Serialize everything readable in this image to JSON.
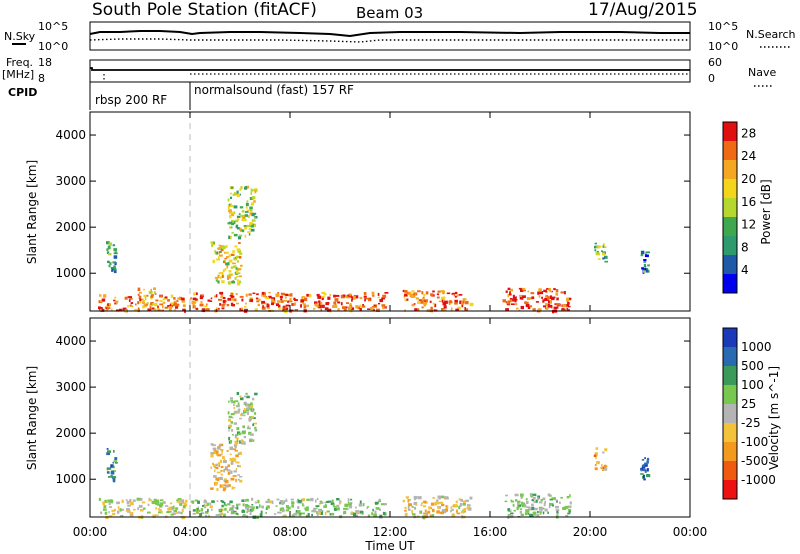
{
  "header": {
    "station": "South Pole Station (fitACF)",
    "beam": "Beam 03",
    "date": "17/Aug/2015"
  },
  "noise_panel": {
    "left_label": "N.Sky",
    "right_label": "N.Search",
    "ticks": [
      "10^5",
      "10^0"
    ]
  },
  "freq_panel": {
    "left_label_line1": "Freq.",
    "left_label_line2": "[MHz]",
    "left_ticks": [
      "18",
      "8"
    ],
    "right_label": "Nave",
    "right_ticks": [
      "60",
      "0"
    ]
  },
  "cpid_panel": {
    "label": "CPID",
    "modes": [
      {
        "text": "rbsp 200 RF",
        "start_hour": 0,
        "end_hour": 4
      },
      {
        "text": "normalsound (fast) 157 RF",
        "start_hour": 4,
        "end_hour": 24
      }
    ]
  },
  "x_axis": {
    "label": "Time UT",
    "ticks": [
      "00:00",
      "04:00",
      "08:00",
      "12:00",
      "16:00",
      "20:00",
      "00:00"
    ]
  },
  "colors": {
    "power_scale": [
      "#0000ee",
      "#1e5aa8",
      "#2e9a6e",
      "#3fa84f",
      "#b6d72e",
      "#f3d61b",
      "#f5a623",
      "#f06a14",
      "#e01010"
    ],
    "velocity_scale": [
      "#ee1111",
      "#f05a10",
      "#f39a1e",
      "#f3c23a",
      "#b4b4b4",
      "#78c850",
      "#3a9a5a",
      "#2a6ab0",
      "#1a3ab8"
    ]
  },
  "chart_data": [
    {
      "type": "heatmap",
      "panel": "power",
      "ylabel": "Slant Range [km]",
      "yticks": [
        "1000",
        "2000",
        "3000",
        "4000"
      ],
      "ylim": [
        180,
        4500
      ],
      "xlim": [
        0,
        24
      ],
      "colorbar": {
        "label": "Power [dB]",
        "ticks": [
          "4",
          "8",
          "12",
          "16",
          "20",
          "24",
          "28"
        ],
        "range": [
          0,
          30
        ]
      },
      "echo_regions": [
        {
          "t0": 0.3,
          "t1": 3.8,
          "r0": 200,
          "r1": 550,
          "value": 24
        },
        {
          "t0": 0.6,
          "t1": 1.0,
          "r0": 1000,
          "r1": 1700,
          "value": 10
        },
        {
          "t0": 1.9,
          "t1": 2.6,
          "r0": 300,
          "r1": 700,
          "value": 20
        },
        {
          "t0": 4.8,
          "t1": 6.0,
          "r0": 800,
          "r1": 1700,
          "value": 18
        },
        {
          "t0": 5.5,
          "t1": 6.6,
          "r0": 1800,
          "r1": 2900,
          "value": 14
        },
        {
          "t0": 4.0,
          "t1": 11.8,
          "r0": 200,
          "r1": 600,
          "value": 26
        },
        {
          "t0": 12.5,
          "t1": 15.2,
          "r0": 200,
          "r1": 650,
          "value": 25
        },
        {
          "t0": 16.5,
          "t1": 19.2,
          "r0": 200,
          "r1": 700,
          "value": 27
        },
        {
          "t0": 20.1,
          "t1": 20.6,
          "r0": 1200,
          "r1": 1700,
          "value": 12
        },
        {
          "t0": 22.0,
          "t1": 22.3,
          "r0": 1000,
          "r1": 1500,
          "value": 8
        }
      ]
    },
    {
      "type": "heatmap",
      "panel": "velocity",
      "ylabel": "Slant Range [km]",
      "yticks": [
        "1000",
        "2000",
        "3000",
        "4000"
      ],
      "ylim": [
        180,
        4500
      ],
      "xlim": [
        0,
        24
      ],
      "colorbar": {
        "label": "Velocity [m s^-1]",
        "ticks": [
          "1000",
          "500",
          "100",
          "25",
          "-25",
          "-100",
          "-500",
          "-1000"
        ],
        "range": [
          -1000,
          1000
        ]
      },
      "echo_regions": [
        {
          "t0": 0.3,
          "t1": 3.8,
          "r0": 200,
          "r1": 600,
          "value": 0
        },
        {
          "t0": 0.6,
          "t1": 1.0,
          "r0": 1000,
          "r1": 1700,
          "value": 600
        },
        {
          "t0": 4.8,
          "t1": 6.0,
          "r0": 800,
          "r1": 1800,
          "value": -200
        },
        {
          "t0": 5.5,
          "t1": 6.6,
          "r0": 1800,
          "r1": 2900,
          "value": 100
        },
        {
          "t0": 4.0,
          "t1": 11.8,
          "r0": 200,
          "r1": 600,
          "value": 150
        },
        {
          "t0": 12.5,
          "t1": 15.2,
          "r0": 200,
          "r1": 650,
          "value": -120
        },
        {
          "t0": 16.5,
          "t1": 19.2,
          "r0": 200,
          "r1": 700,
          "value": 200
        },
        {
          "t0": 20.1,
          "t1": 20.6,
          "r0": 1200,
          "r1": 1700,
          "value": -300
        },
        {
          "t0": 22.0,
          "t1": 22.3,
          "r0": 1000,
          "r1": 1500,
          "value": 700
        }
      ]
    }
  ]
}
